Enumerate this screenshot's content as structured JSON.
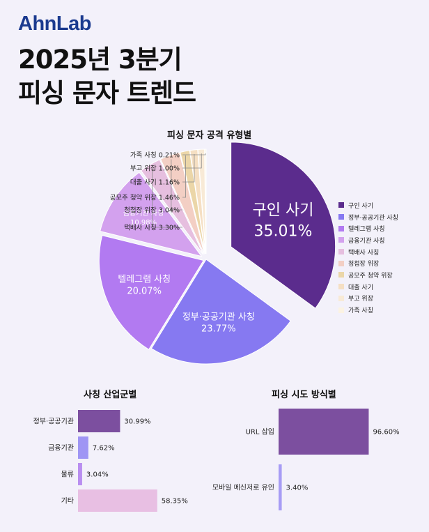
{
  "brand": {
    "logo_text": "AhnLab"
  },
  "header": {
    "title_line1": "2025년 3분기",
    "title_line2": "피싱 문자 트렌드"
  },
  "chart_data": [
    {
      "type": "pie",
      "title": "피싱 문자 공격 유형별",
      "legend_position": "right",
      "series": [
        {
          "name": "구인 사기",
          "label": "구인 사기",
          "value": 35.01,
          "value_label": "35.01%",
          "color": "#5b2c8d"
        },
        {
          "name": "정부·공공기관 사칭",
          "label": "정부·공공기관 사칭",
          "value": 23.77,
          "value_label": "23.77%",
          "color": "#8679f1"
        },
        {
          "name": "텔레그램 사칭",
          "label": "텔레그램 사칭",
          "value": 20.07,
          "value_label": "20.07%",
          "color": "#b27af1"
        },
        {
          "name": "금융기관 사칭",
          "label": "금융기관 사칭",
          "value": 10.98,
          "value_label": "10.98%",
          "color": "#d3a1ee"
        },
        {
          "name": "택배사 사칭",
          "label": "택배사 사칭 3.30%",
          "value": 3.3,
          "color": "#e6bfdf"
        },
        {
          "name": "청첩장 위장",
          "label": "청첩장 위장 3.04%",
          "value": 3.04,
          "color": "#f3cfc4"
        },
        {
          "name": "공모주 청약 위장",
          "label": "공모주 청약 위장 1.46%",
          "value": 1.46,
          "color": "#ebd6a8"
        },
        {
          "name": "대출 사기",
          "label": "대출 사기 1.16%",
          "value": 1.16,
          "color": "#f5dfc3"
        },
        {
          "name": "부고 위장",
          "label": "부고 위장 1.00%",
          "value": 1.0,
          "color": "#f8ead6"
        },
        {
          "name": "가족 사칭",
          "label": "가족 사칭 0.21%",
          "value": 0.21,
          "color": "#fbf3e3"
        }
      ]
    },
    {
      "type": "bar",
      "orientation": "horizontal",
      "title": "사칭 산업군별",
      "categories": [
        "정부·공공기관",
        "금융기관",
        "물류",
        "기타"
      ],
      "values": [
        30.99,
        7.62,
        3.04,
        58.35
      ],
      "value_labels": [
        "30.99%",
        "7.62%",
        "3.04%",
        "58.35%"
      ],
      "colors": [
        "#7c4f9f",
        "#9f95f4",
        "#b98ef0",
        "#e8bfe3"
      ],
      "xlim": [
        0,
        100
      ]
    },
    {
      "type": "bar",
      "orientation": "horizontal",
      "title": "피싱 시도 방식별",
      "categories": [
        "URL 삽입",
        "모바일 메신저로 유인"
      ],
      "values": [
        96.6,
        3.4
      ],
      "value_labels": [
        "96.60%",
        "3.40%"
      ],
      "colors": [
        "#7c4f9f",
        "#a79cf5"
      ],
      "xlim": [
        0,
        100
      ]
    }
  ]
}
